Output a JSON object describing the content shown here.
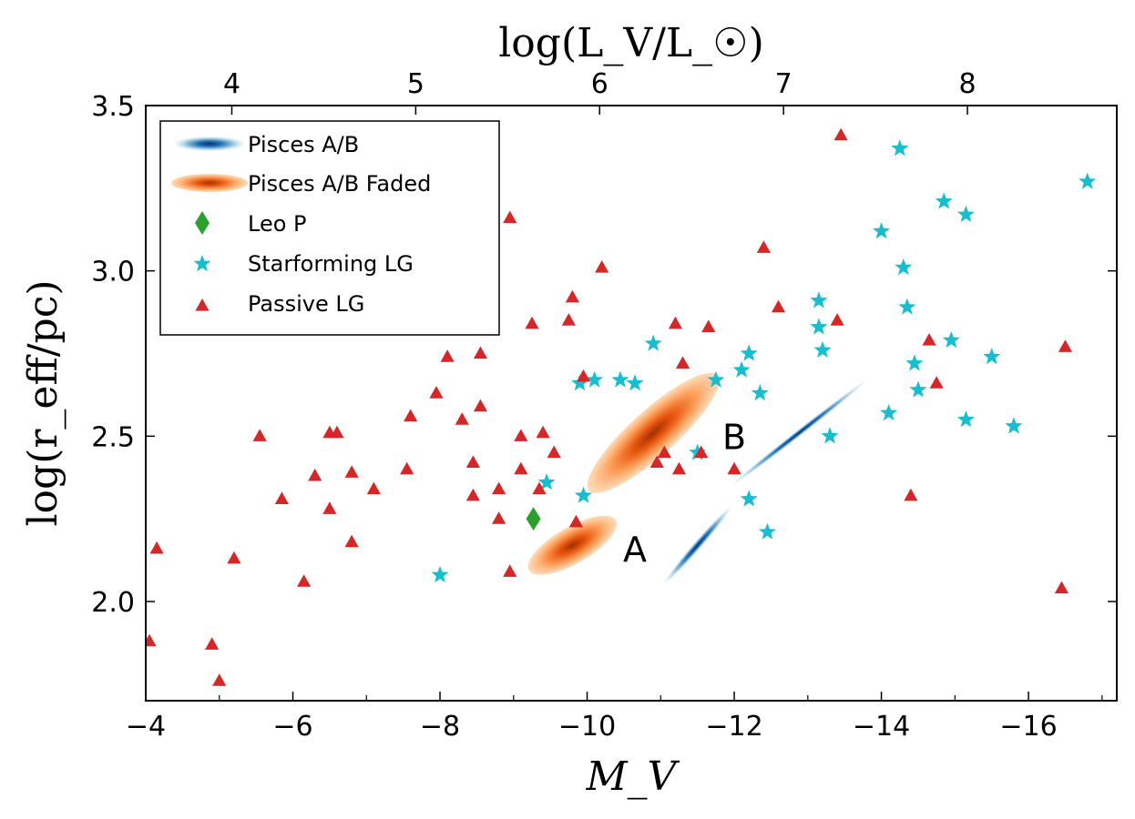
{
  "chart_data": {
    "type": "scatter",
    "xlabel": "M_V",
    "ylabel": "log(r_eff/pc)",
    "top_xlabel": "log(L_V/L_☉)",
    "xlim": [
      -4,
      -17.2
    ],
    "ylim": [
      1.7,
      3.5
    ],
    "x_ticks": [
      -4,
      -6,
      -8,
      -10,
      -12,
      -14,
      -16
    ],
    "x_tick_labels": [
      "−4",
      "−6",
      "−8",
      "−10",
      "−12",
      "−14",
      "−16"
    ],
    "y_ticks": [
      2.0,
      2.5,
      3.0,
      3.5
    ],
    "y_tick_labels": [
      "2.0",
      "2.5",
      "3.0",
      "3.5"
    ],
    "top_ticks": [
      4,
      5,
      6,
      7,
      8
    ],
    "top_tick_labels": [
      "4",
      "5",
      "6",
      "7",
      "8"
    ],
    "legend_position": "top-left",
    "legend": [
      {
        "label": "Pisces A/B",
        "marker": "blue-blob"
      },
      {
        "label": "Pisces A/B Faded",
        "marker": "orange-blob"
      },
      {
        "label": "Leo P",
        "marker": "diamond"
      },
      {
        "label": "Starforming LG",
        "marker": "star"
      },
      {
        "label": "Passive LG",
        "marker": "triangle"
      }
    ],
    "annotations": [
      {
        "text": "A",
        "x": -10.65,
        "y": 2.16
      },
      {
        "text": "B",
        "x": -12.0,
        "y": 2.5
      }
    ],
    "colors": {
      "passive": "#d62728",
      "starforming": "#17becf",
      "leo": "#2ca02c",
      "pisces_dark": "#08519c",
      "pisces_light": "#c6dbef",
      "faded_dark": "#b33c00",
      "faded_light": "#fdae6b"
    },
    "pisces_clouds": [
      {
        "name": "pisces-a-blue",
        "x": -11.5,
        "y": 2.17,
        "angle_deg": -49,
        "len": 110,
        "wid": 9,
        "color": "blue"
      },
      {
        "name": "pisces-b-blue",
        "x": -12.88,
        "y": 2.51,
        "angle_deg": -38,
        "len": 185,
        "wid": 7,
        "color": "blue"
      },
      {
        "name": "pisces-a-faded",
        "x": -9.8,
        "y": 2.17,
        "angle_deg": -30,
        "len": 110,
        "wid": 40,
        "color": "orange"
      },
      {
        "name": "pisces-b-faded",
        "x": -10.9,
        "y": 2.51,
        "angle_deg": -42,
        "len": 190,
        "wid": 50,
        "color": "orange"
      }
    ],
    "series": [
      {
        "name": "Leo P",
        "marker": "diamond",
        "points": [
          [
            -9.27,
            2.25
          ]
        ]
      },
      {
        "name": "Starforming LG",
        "marker": "star",
        "points": [
          [
            -8.0,
            2.08
          ],
          [
            -9.45,
            2.36
          ],
          [
            -9.9,
            2.66
          ],
          [
            -9.95,
            2.32
          ],
          [
            -10.1,
            2.67
          ],
          [
            -10.45,
            2.67
          ],
          [
            -10.65,
            2.66
          ],
          [
            -10.9,
            2.78
          ],
          [
            -11.5,
            2.45
          ],
          [
            -11.75,
            2.67
          ],
          [
            -12.1,
            2.7
          ],
          [
            -12.2,
            2.75
          ],
          [
            -12.2,
            2.31
          ],
          [
            -12.35,
            2.63
          ],
          [
            -12.45,
            2.21
          ],
          [
            -13.15,
            2.91
          ],
          [
            -13.15,
            2.83
          ],
          [
            -13.2,
            2.76
          ],
          [
            -13.3,
            2.5
          ],
          [
            -14.0,
            3.12
          ],
          [
            -14.1,
            2.57
          ],
          [
            -14.25,
            3.37
          ],
          [
            -14.3,
            3.01
          ],
          [
            -14.35,
            2.89
          ],
          [
            -14.45,
            2.72
          ],
          [
            -14.5,
            2.64
          ],
          [
            -14.85,
            3.21
          ],
          [
            -14.95,
            2.79
          ],
          [
            -15.15,
            3.17
          ],
          [
            -15.15,
            2.55
          ],
          [
            -15.5,
            2.74
          ],
          [
            -15.8,
            2.53
          ],
          [
            -16.8,
            3.27
          ]
        ]
      },
      {
        "name": "Passive LG",
        "marker": "triangle",
        "points": [
          [
            -4.05,
            1.88
          ],
          [
            -4.15,
            2.16
          ],
          [
            -4.9,
            1.87
          ],
          [
            -5.0,
            1.76
          ],
          [
            -5.2,
            2.13
          ],
          [
            -5.55,
            2.5
          ],
          [
            -5.85,
            2.31
          ],
          [
            -6.15,
            2.06
          ],
          [
            -6.3,
            2.38
          ],
          [
            -6.5,
            2.28
          ],
          [
            -6.5,
            2.51
          ],
          [
            -6.6,
            2.51
          ],
          [
            -6.8,
            2.39
          ],
          [
            -6.8,
            2.18
          ],
          [
            -7.1,
            2.34
          ],
          [
            -7.55,
            2.4
          ],
          [
            -7.6,
            2.56
          ],
          [
            -7.95,
            2.63
          ],
          [
            -8.1,
            2.74
          ],
          [
            -8.3,
            2.55
          ],
          [
            -8.45,
            2.42
          ],
          [
            -8.45,
            2.32
          ],
          [
            -8.55,
            2.59
          ],
          [
            -8.55,
            2.75
          ],
          [
            -8.8,
            2.25
          ],
          [
            -8.8,
            2.34
          ],
          [
            -8.95,
            2.09
          ],
          [
            -8.95,
            3.16
          ],
          [
            -9.1,
            2.5
          ],
          [
            -9.1,
            2.4
          ],
          [
            -9.25,
            2.84
          ],
          [
            -9.35,
            2.34
          ],
          [
            -9.4,
            2.51
          ],
          [
            -9.55,
            2.45
          ],
          [
            -9.75,
            2.85
          ],
          [
            -9.8,
            2.92
          ],
          [
            -9.85,
            2.24
          ],
          [
            -9.95,
            2.68
          ],
          [
            -10.2,
            3.01
          ],
          [
            -10.95,
            2.42
          ],
          [
            -11.05,
            2.45
          ],
          [
            -11.2,
            2.84
          ],
          [
            -11.25,
            2.4
          ],
          [
            -11.3,
            2.72
          ],
          [
            -11.55,
            2.45
          ],
          [
            -11.65,
            2.83
          ],
          [
            -12.0,
            2.4
          ],
          [
            -12.4,
            3.07
          ],
          [
            -12.6,
            2.89
          ],
          [
            -13.4,
            2.85
          ],
          [
            -13.45,
            3.41
          ],
          [
            -14.4,
            2.32
          ],
          [
            -14.65,
            2.79
          ],
          [
            -14.75,
            2.66
          ],
          [
            -16.45,
            2.04
          ],
          [
            -16.5,
            2.77
          ]
        ]
      }
    ]
  }
}
